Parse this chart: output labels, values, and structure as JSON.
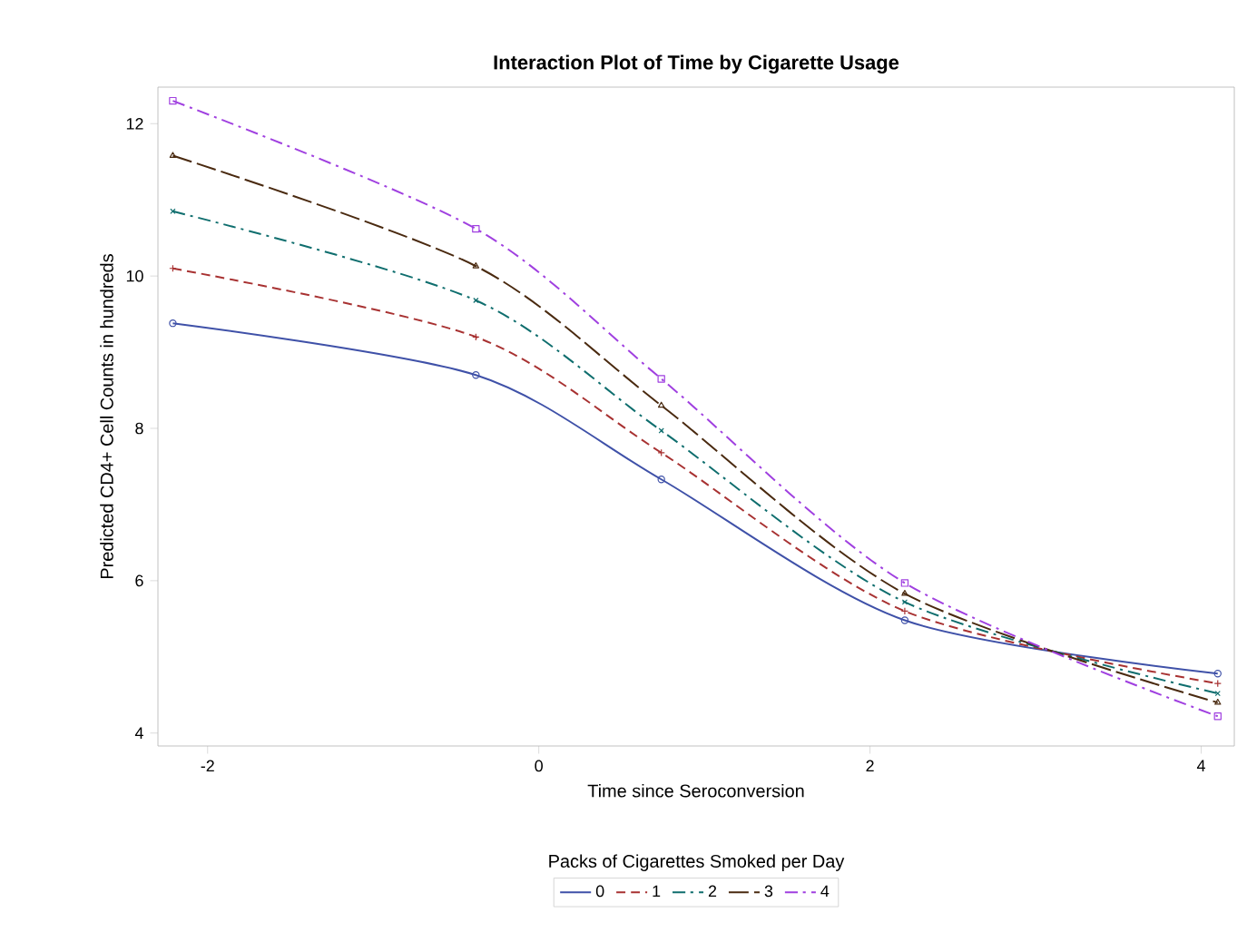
{
  "chart_data": {
    "type": "line",
    "title": "Interaction Plot of Time by Cigarette Usage",
    "xlabel": "Time since Seroconversion",
    "ylabel": "Predicted CD4+ Cell Counts in hundreds",
    "legend_title": "Packs of Cigarettes Smoked per Day",
    "legend": "bottom",
    "grid": false,
    "x": [
      -2.21,
      -0.38,
      0.74,
      2.21,
      4.1
    ],
    "xlim": [
      -2.3,
      4.2
    ],
    "xticks": [
      -2,
      0,
      2,
      4
    ],
    "ylim": [
      3.83,
      12.48
    ],
    "yticks": [
      4,
      6,
      8,
      10,
      12
    ],
    "series": [
      {
        "name": "0",
        "color": "#3f51a8",
        "marker": "circle",
        "line_style": "solid",
        "values": [
          9.38,
          8.7,
          7.33,
          5.48,
          4.78
        ]
      },
      {
        "name": "1",
        "color": "#a83232",
        "marker": "plus",
        "line_style": "dashed",
        "values": [
          10.1,
          9.2,
          7.68,
          5.6,
          4.65
        ]
      },
      {
        "name": "2",
        "color": "#0f6e6e",
        "marker": "cross",
        "line_style": "dashdot",
        "values": [
          10.85,
          9.68,
          7.97,
          5.72,
          4.52
        ]
      },
      {
        "name": "3",
        "color": "#4a2a10",
        "marker": "triangle",
        "line_style": "longdash",
        "values": [
          11.58,
          10.13,
          8.3,
          5.83,
          4.4
        ]
      },
      {
        "name": "4",
        "color": "#a040e0",
        "marker": "square",
        "line_style": "dashdot",
        "values": [
          12.3,
          10.62,
          8.65,
          5.97,
          4.22
        ]
      }
    ]
  }
}
